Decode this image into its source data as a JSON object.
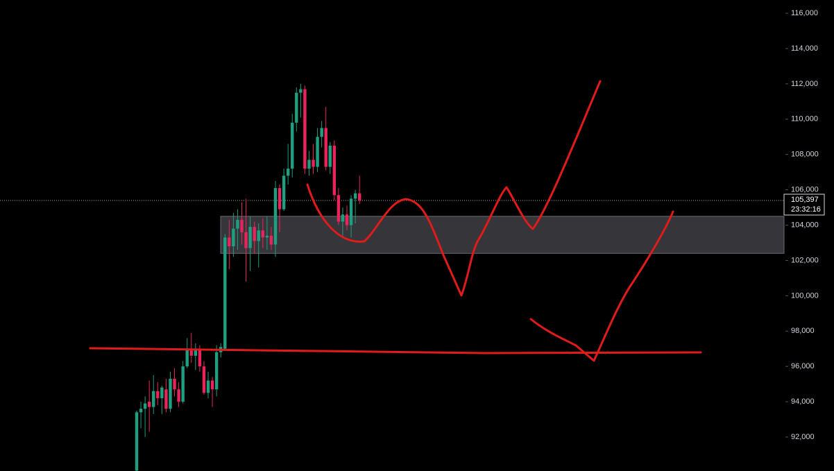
{
  "chart_data": {
    "type": "candlestick",
    "open": [
      90100,
      93400,
      93600,
      94000,
      93700,
      94600,
      94200,
      94700,
      93600,
      95300,
      94700,
      94000,
      96000,
      96900,
      96600,
      97000,
      96000,
      94500,
      95200,
      94700,
      96800,
      97000,
      103300,
      102800,
      103800,
      104300,
      103600,
      102700,
      103900,
      103100,
      103700,
      103300,
      103400,
      102900,
      106100,
      104900,
      106800,
      107200,
      109800,
      111500,
      111700,
      107200,
      107700,
      107300,
      109000,
      109500,
      107300,
      108500,
      105700,
      104200,
      104600,
      104000,
      105500,
      105800
    ],
    "high": [
      93500,
      94000,
      94300,
      95200,
      95500,
      95100,
      94900,
      95300,
      95700,
      95900,
      95100,
      96300,
      97600,
      97900,
      97300,
      97200,
      96300,
      95700,
      95400,
      97200,
      97300,
      103500,
      104300,
      104700,
      104900,
      105300,
      105500,
      104500,
      104200,
      104100,
      104400,
      104500,
      103900,
      106500,
      106300,
      107200,
      108600,
      110300,
      111800,
      112000,
      111900,
      108200,
      108600,
      109500,
      109900,
      110700,
      108700,
      108800,
      106100,
      105000,
      105100,
      105700,
      106000,
      106800
    ],
    "low": [
      90075,
      92500,
      92000,
      92300,
      93300,
      93800,
      93300,
      93400,
      93400,
      94300,
      93700,
      93900,
      95900,
      96200,
      95800,
      95700,
      94400,
      94200,
      93700,
      94300,
      96500,
      96900,
      101500,
      102200,
      102600,
      102900,
      100800,
      101400,
      102400,
      101600,
      102700,
      102600,
      102600,
      102200,
      103600,
      104800,
      106300,
      106700,
      109300,
      110100,
      106900,
      106800,
      106900,
      107000,
      108400,
      107100,
      106900,
      105400,
      104000,
      103400,
      103700,
      103300,
      104100,
      105200
    ],
    "close": [
      93400,
      93600,
      93900,
      93700,
      94600,
      94200,
      94800,
      93600,
      95300,
      94700,
      94000,
      96000,
      97000,
      96600,
      97000,
      96000,
      94500,
      95200,
      94700,
      96800,
      97100,
      103300,
      102800,
      103800,
      104300,
      103600,
      102700,
      103900,
      103100,
      103700,
      103300,
      103400,
      102900,
      106100,
      104900,
      106800,
      107200,
      109800,
      111500,
      111700,
      107200,
      107700,
      107300,
      109000,
      109500,
      107300,
      108500,
      105700,
      104200,
      104600,
      104000,
      105500,
      105800,
      105397
    ],
    "up_color": "#1f9e80",
    "down_color": "#e9245d",
    "ylim": [
      90075,
      116750
    ],
    "yticks": [
      {
        "value": 92000,
        "label": "92,000"
      },
      {
        "value": 94000,
        "label": "94,000"
      },
      {
        "value": 96000,
        "label": "96,000"
      },
      {
        "value": 98000,
        "label": "98,000"
      },
      {
        "value": 100000,
        "label": "100,000"
      },
      {
        "value": 102000,
        "label": "102,000"
      },
      {
        "value": 104000,
        "label": "104,000"
      },
      {
        "value": 106000,
        "label": "106,000"
      },
      {
        "value": 108000,
        "label": "108,000"
      },
      {
        "value": 110000,
        "label": "110,000"
      },
      {
        "value": 112000,
        "label": "112,000"
      },
      {
        "value": 114000,
        "label": "114,000"
      },
      {
        "value": 116000,
        "label": "116,000"
      }
    ],
    "current_price": {
      "value": 105397,
      "label": "105,397"
    },
    "countdown": "23:32:16",
    "zone": [
      102400,
      104500
    ]
  }
}
